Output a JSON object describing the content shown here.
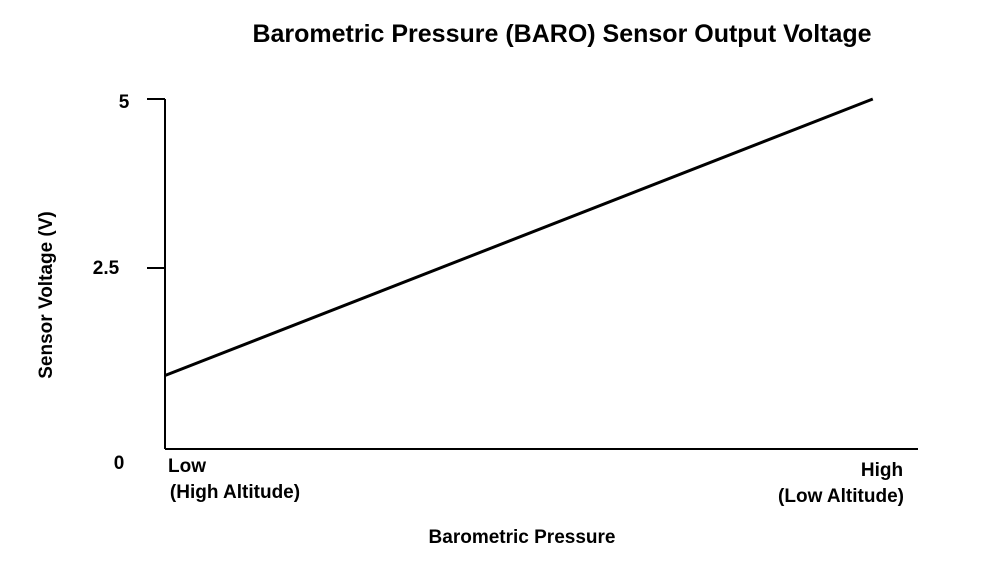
{
  "chart_data": {
    "type": "line",
    "title": "Barometric Pressure (BARO) Sensor Output Voltage",
    "xlabel": "Barometric Pressure",
    "ylabel": "Sensor Voltage (V)",
    "x_ticks": [
      {
        "lines": [
          "Low",
          "(High Altitude)"
        ]
      },
      {
        "lines": [
          "High",
          "(Low Altitude)"
        ]
      }
    ],
    "y_ticks": [
      "0",
      "2.5",
      "5"
    ],
    "ylim": [
      0,
      5
    ],
    "xlim": [
      0,
      1
    ],
    "grid": false,
    "series": [
      {
        "x": [
          0,
          0.94
        ],
        "y": [
          1.05,
          5.0
        ]
      }
    ],
    "colors": {
      "line": "#000000",
      "axis": "#000000",
      "background": "#ffffff"
    }
  }
}
